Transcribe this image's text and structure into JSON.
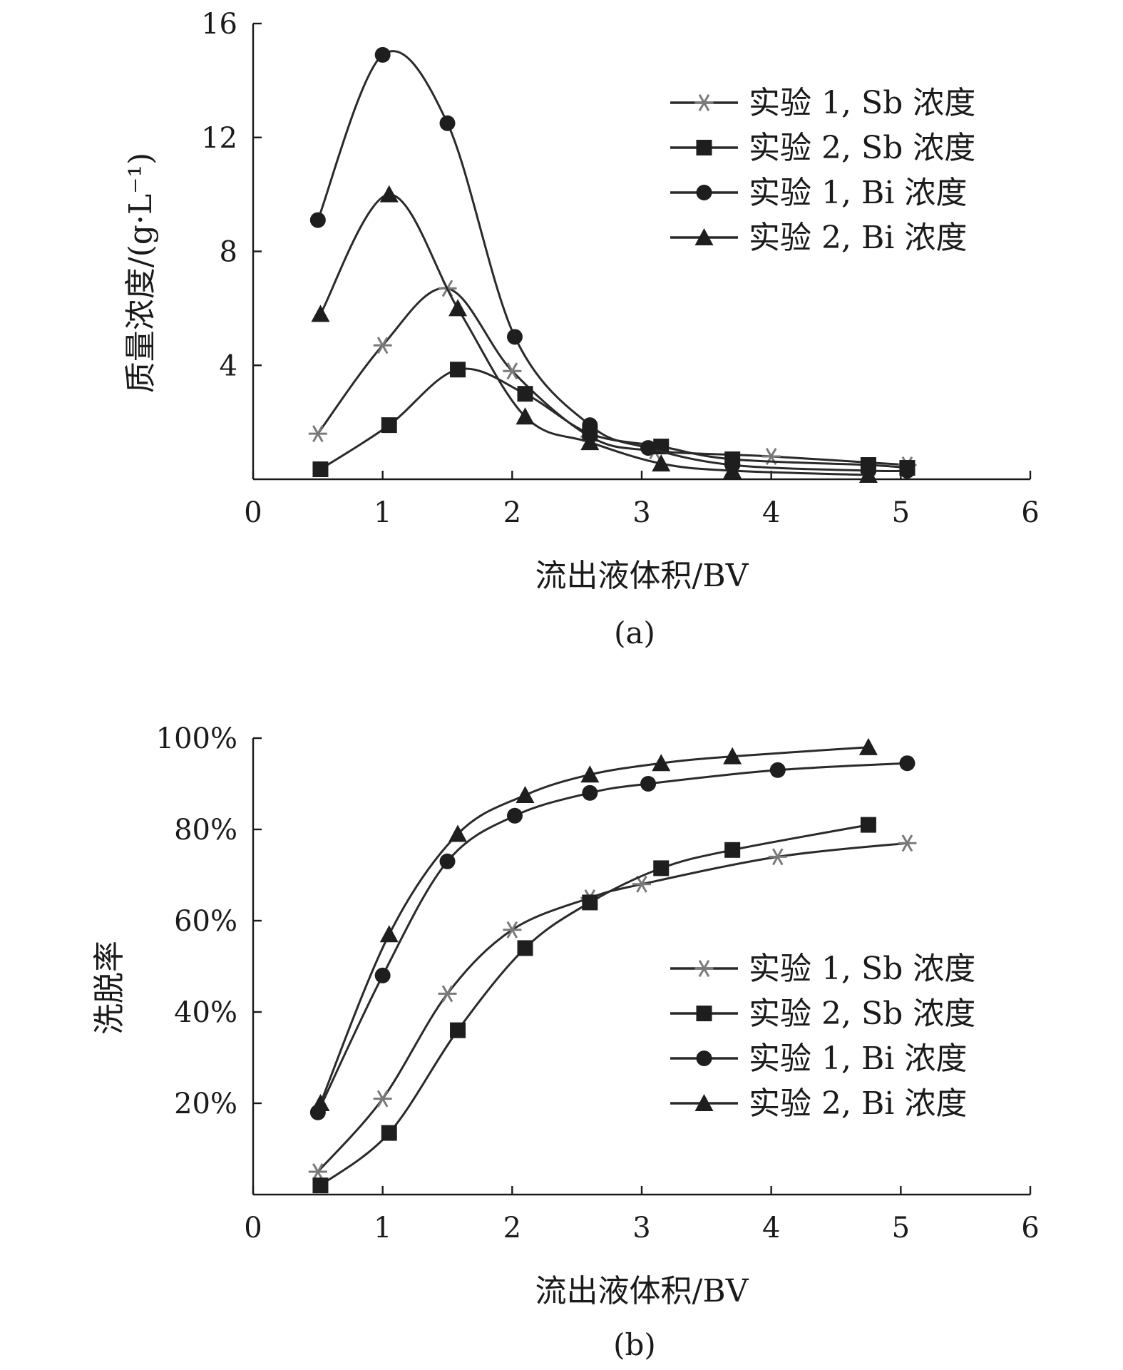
{
  "chart_data": [
    {
      "type": "line",
      "panel_label": "(a)",
      "xlabel": "流出液体积/BV",
      "ylabel": "质量浓度/(g·L⁻¹)",
      "xlim": [
        0,
        6
      ],
      "ylim": [
        0,
        16
      ],
      "x_ticks": [
        "0",
        "1",
        "2",
        "3",
        "4",
        "5",
        "6"
      ],
      "y_ticks": [
        "4",
        "8",
        "12",
        "16"
      ],
      "y_tick_values": [
        4,
        8,
        12,
        16
      ],
      "grid": false,
      "legend_position": "top-right",
      "series": [
        {
          "name": "实验 1, Sb 浓度",
          "marker": "star",
          "x": [
            0.5,
            1.0,
            1.5,
            2.0,
            2.6,
            3.1,
            4.0,
            5.05
          ],
          "y": [
            1.6,
            4.7,
            6.7,
            3.8,
            1.5,
            1.0,
            0.8,
            0.5
          ]
        },
        {
          "name": "实验 2, Sb 浓度",
          "marker": "square",
          "x": [
            0.52,
            1.05,
            1.58,
            2.1,
            2.6,
            3.15,
            3.7,
            4.75,
            5.05
          ],
          "y": [
            0.35,
            1.9,
            3.85,
            3.0,
            1.6,
            1.15,
            0.7,
            0.5,
            0.4
          ]
        },
        {
          "name": "实验 1, Bi 浓度",
          "marker": "circle",
          "x": [
            0.5,
            1.0,
            1.5,
            2.02,
            2.6,
            3.05,
            3.7,
            4.75,
            5.05
          ],
          "y": [
            9.1,
            14.9,
            12.5,
            5.0,
            1.9,
            1.1,
            0.5,
            0.3,
            0.3
          ]
        },
        {
          "name": "实验 2, Bi 浓度",
          "marker": "triangle",
          "x": [
            0.52,
            1.05,
            1.58,
            2.1,
            2.6,
            3.15,
            3.7,
            4.75
          ],
          "y": [
            5.8,
            10.0,
            6.0,
            2.2,
            1.3,
            0.55,
            0.3,
            0.15
          ]
        }
      ]
    },
    {
      "type": "line",
      "panel_label": "(b)",
      "xlabel": "流出液体积/BV",
      "ylabel": "洗脱率",
      "xlim": [
        0,
        6
      ],
      "ylim": [
        0,
        1.0
      ],
      "x_ticks": [
        "0",
        "1",
        "2",
        "3",
        "4",
        "5",
        "6"
      ],
      "y_ticks": [
        "20%",
        "40%",
        "60%",
        "80%",
        "100%"
      ],
      "y_tick_values": [
        0.2,
        0.4,
        0.6,
        0.8,
        1.0
      ],
      "grid": false,
      "legend_position": "bottom-right",
      "series": [
        {
          "name": "实验 1, Sb 浓度",
          "marker": "star",
          "x": [
            0.5,
            1.0,
            1.5,
            2.0,
            2.6,
            3.0,
            4.05,
            5.05
          ],
          "y": [
            0.05,
            0.21,
            0.44,
            0.58,
            0.65,
            0.68,
            0.74,
            0.77
          ]
        },
        {
          "name": "实验 2, Sb 浓度",
          "marker": "square",
          "x": [
            0.52,
            1.05,
            1.58,
            2.1,
            2.6,
            3.15,
            3.7,
            4.75
          ],
          "y": [
            0.02,
            0.135,
            0.36,
            0.54,
            0.64,
            0.715,
            0.755,
            0.81
          ]
        },
        {
          "name": "实验 1, Bi 浓度",
          "marker": "circle",
          "x": [
            0.5,
            1.0,
            1.5,
            2.02,
            2.6,
            3.05,
            4.05,
            5.05
          ],
          "y": [
            0.18,
            0.48,
            0.73,
            0.83,
            0.88,
            0.9,
            0.93,
            0.945
          ]
        },
        {
          "name": "实验 2, Bi 浓度",
          "marker": "triangle",
          "x": [
            0.52,
            1.05,
            1.58,
            2.1,
            2.6,
            3.15,
            3.7,
            4.75
          ],
          "y": [
            0.2,
            0.57,
            0.79,
            0.875,
            0.92,
            0.945,
            0.96,
            0.98
          ]
        }
      ]
    }
  ]
}
